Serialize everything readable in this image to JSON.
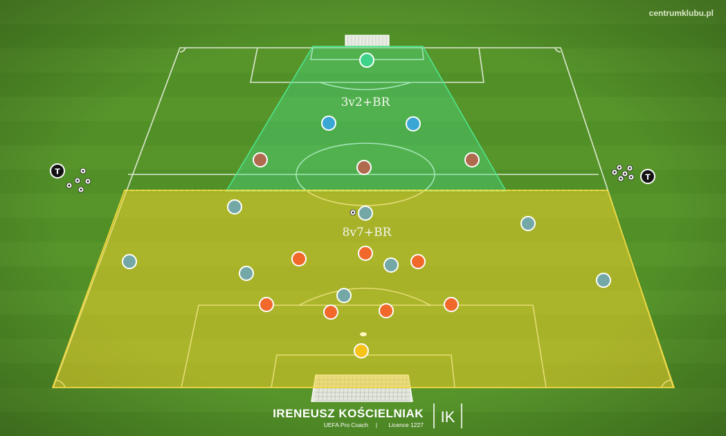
{
  "watermark": "centrumklubu.pl",
  "zones": {
    "top_label": "3v2+BR",
    "bottom_label": "8v7+BR"
  },
  "coach": {
    "name": "IRENEUSZ KOŚCIELNIAK",
    "title": "UEFA Pro Coach",
    "separator": "|",
    "licence": "Licence 1227",
    "logo_text": "IK"
  },
  "trainer_marker": "T",
  "colors": {
    "grass_dark": "#4a8622",
    "grass_light": "#5c9a2c",
    "lines": "#f2f2f2",
    "top_zone": "#47e08a",
    "bottom_zone": "#efd02a",
    "goalkeeper_top": "#3fd38a",
    "blue_players": "#3aa6d4",
    "brown_players": "#b06a4e",
    "grey_players": "#73a8a6",
    "orange_players": "#f0692a",
    "goalkeeper_bottom": "#f7c21a"
  }
}
